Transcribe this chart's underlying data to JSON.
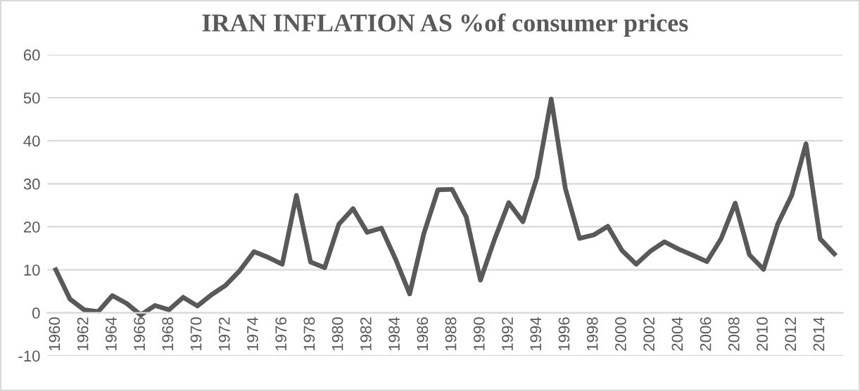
{
  "chart_data": {
    "type": "line",
    "title": "IRAN INFLATION AS %of consumer prices",
    "categories": [
      "1960",
      null,
      "1962",
      null,
      "1964",
      null,
      "1966",
      null,
      "1968",
      null,
      "1970",
      null,
      "1972",
      null,
      "1974",
      null,
      "1976",
      null,
      "1978",
      null,
      "1980",
      null,
      "1982",
      null,
      "1984",
      null,
      "1986",
      null,
      "1988",
      null,
      "1990",
      null,
      "1992",
      null,
      "1994",
      null,
      "1996",
      null,
      "1998",
      null,
      "2000",
      null,
      "2002",
      null,
      "2004",
      null,
      "2006",
      null,
      "2008",
      null,
      "2010",
      null,
      "2012",
      null,
      "2014",
      null
    ],
    "series": [
      {
        "color": "#595959",
        "values": [
          10,
          3.2,
          0.7,
          0.3,
          4,
          2.2,
          -0.5,
          1.7,
          0.7,
          3.6,
          1.6,
          4.2,
          6.4,
          9.8,
          14.2,
          12.9,
          11.3,
          27.3,
          11.8,
          10.5,
          20.6,
          24.2,
          18.7,
          19.7,
          12.5,
          4.4,
          18.4,
          28.6,
          28.7,
          22.3,
          7.6,
          17.1,
          25.6,
          21.2,
          31.5,
          49.7,
          28.9,
          17.3,
          18.1,
          20.1,
          14.5,
          11.3,
          14.3,
          16.5,
          14.8,
          13.4,
          11.9,
          17.2,
          25.5,
          13.5,
          10.1,
          20.6,
          27.4,
          39.3,
          17.2,
          13.7
        ]
      }
    ],
    "ylim": [
      -10,
      60
    ],
    "yticks": [
      -10,
      0,
      10,
      20,
      30,
      40,
      50,
      60
    ],
    "grid": "y",
    "marker": "none",
    "line_style": "solid"
  }
}
